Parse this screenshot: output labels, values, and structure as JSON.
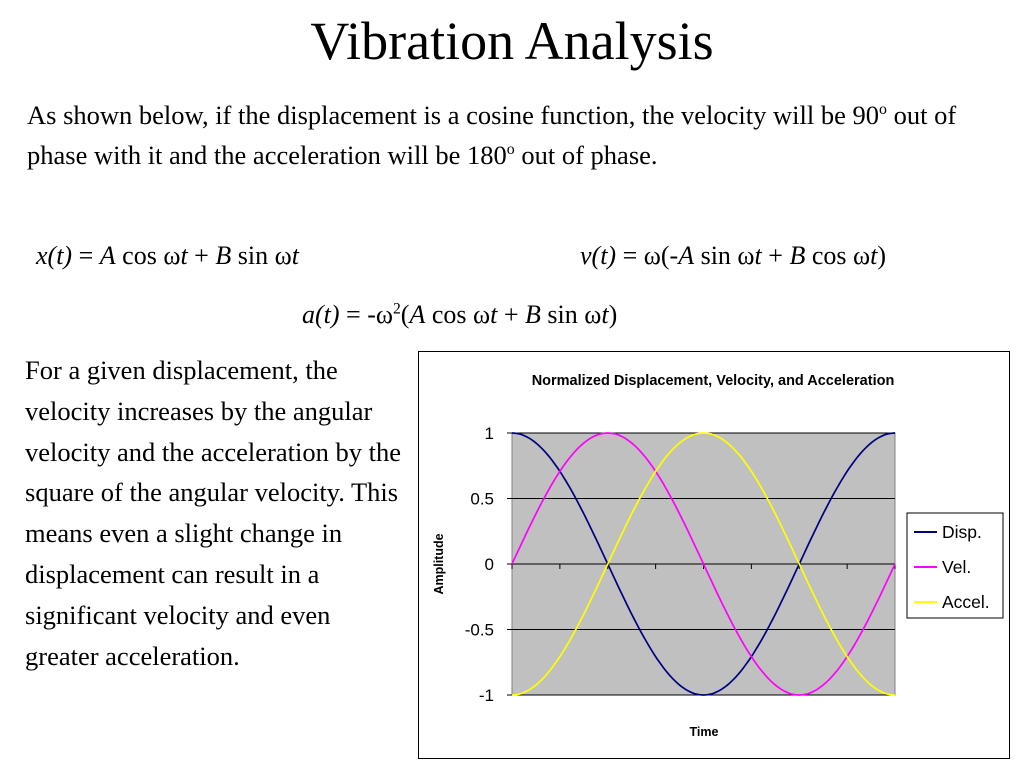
{
  "slide": {
    "title": "Vibration Analysis",
    "intro": {
      "part1": "As shown below, if the displacement is a cosine function, the velocity will be 90",
      "deg1": "o",
      "part2": " out of phase with it and the acceleration will be 180",
      "deg2": "o",
      "part3": " out of phase."
    },
    "equations": {
      "x": {
        "lhs": "x(t)",
        "eq": " = ",
        "A": "A",
        "cos": " cos ω",
        "t1": "t",
        "plus": " + ",
        "B": "B",
        "sin": " sin ω",
        "t2": "t"
      },
      "v": {
        "lhs": "v(t)",
        "eq": " = ω(-",
        "A": "A",
        "sin": " sin ω",
        "t1": "t",
        "plus": " + ",
        "B": "B",
        "cos": " cos ω",
        "t2": "t",
        "close": ")"
      },
      "a": {
        "lhs": "a(t)",
        "eq": " = -ω",
        "sq": "2",
        "open": "(",
        "A": "A",
        "cos": " cos ω",
        "t1": "t",
        "plus": " + ",
        "B": "B",
        "sin": " sin ω",
        "t2": "t",
        "close": ")"
      }
    },
    "side_text": "For a given displacement, the velocity increases by the angular velocity and the acceleration by the square of the angular velocity. This means even a slight change in displacement can result in a significant velocity and even greater acceleration."
  },
  "colors": {
    "plot_bg": "#c0c0c0",
    "gridline": "#000000",
    "disp": "#000080",
    "vel": "#ff00ff",
    "accel": "#ffff00"
  },
  "chart_data": {
    "type": "line",
    "title": "Normalized Displacement, Velocity, and Acceleration",
    "xlabel": "Time",
    "ylabel": "Amplitude",
    "ylim": [
      -1,
      1
    ],
    "yticks": [
      "1",
      "0.5",
      "0",
      "-0.5",
      "-1"
    ],
    "ytick_values": [
      1,
      0.5,
      0,
      -0.5,
      -1
    ],
    "xlim": [
      0,
      6.2832
    ],
    "grid": true,
    "legend_position": "right",
    "x": [
      0,
      0.7854,
      1.5708,
      2.3562,
      3.1416,
      3.927,
      4.7124,
      5.4978,
      6.2832
    ],
    "series": [
      {
        "name": "Disp.",
        "color": "#000080",
        "values": [
          1,
          0.707,
          0,
          -0.707,
          -1,
          -0.707,
          0,
          0.707,
          1
        ]
      },
      {
        "name": "Vel.",
        "color": "#ff00ff",
        "values": [
          0,
          0.707,
          1,
          0.707,
          0,
          -0.707,
          -1,
          -0.707,
          0
        ]
      },
      {
        "name": "Accel.",
        "color": "#ffff00",
        "values": [
          -1,
          -0.707,
          0,
          0.707,
          1,
          0.707,
          0,
          -0.707,
          -1
        ]
      }
    ]
  }
}
